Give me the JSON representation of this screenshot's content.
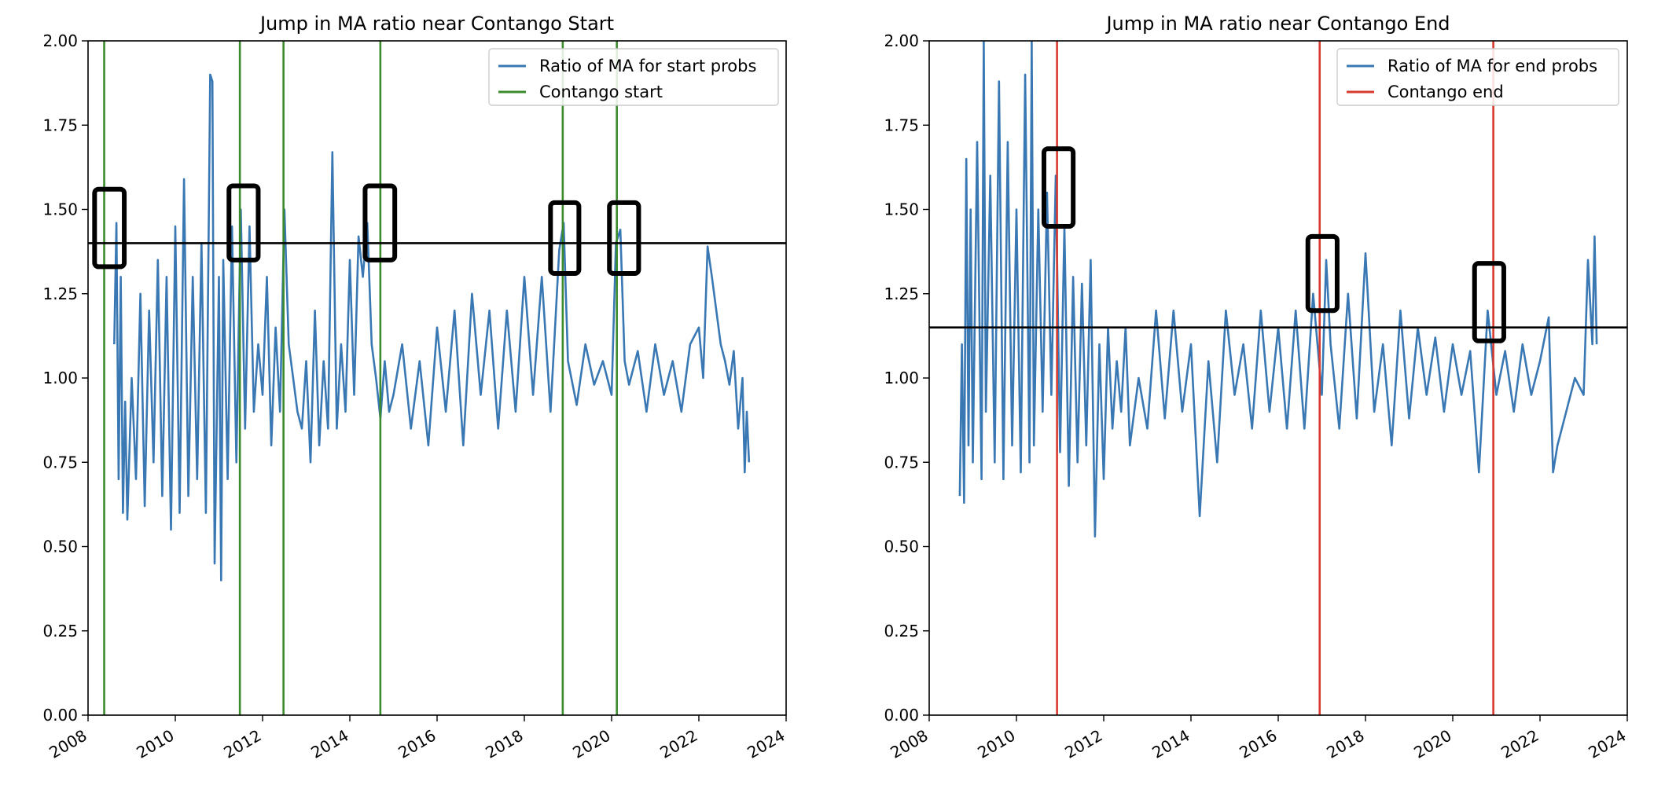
{
  "chart_data": [
    {
      "type": "line",
      "title": "Jump in MA ratio near Contango Start",
      "xlabel": "",
      "ylabel": "",
      "xlim": [
        2008.0,
        2024.0
      ],
      "ylim": [
        0.0,
        2.0
      ],
      "x_ticks": [
        "2008",
        "2010",
        "2012",
        "2014",
        "2016",
        "2018",
        "2020",
        "2022",
        "2024"
      ],
      "y_ticks": [
        "0.00",
        "0.25",
        "0.50",
        "0.75",
        "1.00",
        "1.25",
        "1.50",
        "1.75",
        "2.00"
      ],
      "legend_position": "top-right",
      "grid": false,
      "series": [
        {
          "name": "Ratio of MA for start probs",
          "color": "#3a78b4",
          "x": [
            2008.6,
            2008.65,
            2008.7,
            2008.75,
            2008.8,
            2008.85,
            2008.9,
            2009.0,
            2009.1,
            2009.2,
            2009.3,
            2009.4,
            2009.5,
            2009.6,
            2009.7,
            2009.8,
            2009.9,
            2010.0,
            2010.1,
            2010.2,
            2010.3,
            2010.4,
            2010.5,
            2010.6,
            2010.7,
            2010.8,
            2010.85,
            2010.9,
            2011.0,
            2011.05,
            2011.1,
            2011.2,
            2011.3,
            2011.4,
            2011.5,
            2011.6,
            2011.7,
            2011.8,
            2011.9,
            2012.0,
            2012.1,
            2012.2,
            2012.3,
            2012.4,
            2012.5,
            2012.6,
            2012.7,
            2012.8,
            2012.9,
            2013.0,
            2013.1,
            2013.2,
            2013.3,
            2013.4,
            2013.5,
            2013.6,
            2013.7,
            2013.8,
            2013.9,
            2014.0,
            2014.1,
            2014.2,
            2014.3,
            2014.4,
            2014.5,
            2014.6,
            2014.7,
            2014.8,
            2014.9,
            2015.0,
            2015.2,
            2015.4,
            2015.6,
            2015.8,
            2016.0,
            2016.2,
            2016.4,
            2016.6,
            2016.8,
            2017.0,
            2017.2,
            2017.4,
            2017.6,
            2017.8,
            2018.0,
            2018.2,
            2018.4,
            2018.6,
            2018.8,
            2018.9,
            2019.0,
            2019.2,
            2019.4,
            2019.6,
            2019.8,
            2020.0,
            2020.1,
            2020.2,
            2020.3,
            2020.4,
            2020.6,
            2020.8,
            2021.0,
            2021.2,
            2021.4,
            2021.6,
            2021.8,
            2022.0,
            2022.1,
            2022.2,
            2022.3,
            2022.4,
            2022.5,
            2022.6,
            2022.7,
            2022.8,
            2022.9,
            2023.0,
            2023.05,
            2023.1,
            2023.15
          ],
          "values": [
            1.1,
            1.46,
            0.7,
            1.3,
            0.6,
            0.93,
            0.58,
            1.0,
            0.7,
            1.25,
            0.62,
            1.2,
            0.75,
            1.35,
            0.65,
            1.3,
            0.55,
            1.45,
            0.6,
            1.59,
            0.65,
            1.3,
            0.7,
            1.4,
            0.6,
            1.9,
            1.88,
            0.45,
            1.3,
            0.4,
            1.35,
            0.7,
            1.45,
            0.75,
            1.5,
            0.85,
            1.45,
            0.9,
            1.1,
            0.95,
            1.3,
            0.8,
            1.15,
            0.9,
            1.5,
            1.1,
            1.0,
            0.9,
            0.85,
            1.05,
            0.75,
            1.2,
            0.8,
            1.05,
            0.85,
            1.67,
            0.85,
            1.1,
            0.9,
            1.35,
            0.95,
            1.42,
            1.3,
            1.46,
            1.1,
            1.0,
            0.88,
            1.05,
            0.9,
            0.95,
            1.1,
            0.85,
            1.05,
            0.8,
            1.15,
            0.9,
            1.2,
            0.8,
            1.25,
            0.95,
            1.2,
            0.85,
            1.2,
            0.9,
            1.3,
            0.95,
            1.3,
            0.9,
            1.38,
            1.46,
            1.05,
            0.92,
            1.1,
            0.98,
            1.05,
            0.95,
            1.4,
            1.44,
            1.05,
            0.98,
            1.08,
            0.9,
            1.1,
            0.95,
            1.05,
            0.9,
            1.1,
            1.15,
            1.0,
            1.39,
            1.3,
            1.2,
            1.1,
            1.05,
            0.98,
            1.08,
            0.85,
            1.0,
            0.72,
            0.9,
            0.75
          ]
        },
        {
          "name": "Contango start",
          "color": "#3b8b2c",
          "vlines": [
            2008.37,
            2011.48,
            2012.48,
            2014.7,
            2018.88,
            2020.12
          ]
        }
      ],
      "threshold_line": 1.4,
      "highlight_boxes": [
        {
          "x": [
            2008.15,
            2008.83
          ],
          "y": [
            1.33,
            1.56
          ]
        },
        {
          "x": [
            2011.23,
            2011.9
          ],
          "y": [
            1.35,
            1.57
          ]
        },
        {
          "x": [
            2014.35,
            2015.03
          ],
          "y": [
            1.35,
            1.57
          ]
        },
        {
          "x": [
            2018.6,
            2019.25
          ],
          "y": [
            1.31,
            1.52
          ]
        },
        {
          "x": [
            2019.95,
            2020.62
          ],
          "y": [
            1.31,
            1.52
          ]
        }
      ]
    },
    {
      "type": "line",
      "title": "Jump in MA ratio near Contango End",
      "xlabel": "",
      "ylabel": "",
      "xlim": [
        2008.0,
        2024.0
      ],
      "ylim": [
        0.0,
        2.0
      ],
      "x_ticks": [
        "2008",
        "2010",
        "2012",
        "2014",
        "2016",
        "2018",
        "2020",
        "2022",
        "2024"
      ],
      "y_ticks": [
        "0.00",
        "0.25",
        "0.50",
        "0.75",
        "1.00",
        "1.25",
        "1.50",
        "1.75",
        "2.00"
      ],
      "legend_position": "top-right",
      "grid": false,
      "series": [
        {
          "name": "Ratio of MA for end probs",
          "color": "#3a78b4",
          "x": [
            2008.7,
            2008.75,
            2008.8,
            2008.85,
            2008.9,
            2008.95,
            2009.0,
            2009.1,
            2009.2,
            2009.25,
            2009.3,
            2009.4,
            2009.5,
            2009.6,
            2009.7,
            2009.8,
            2009.9,
            2010.0,
            2010.1,
            2010.2,
            2010.3,
            2010.35,
            2010.4,
            2010.5,
            2010.6,
            2010.7,
            2010.8,
            2010.9,
            2011.0,
            2011.1,
            2011.2,
            2011.3,
            2011.4,
            2011.5,
            2011.6,
            2011.7,
            2011.8,
            2011.9,
            2012.0,
            2012.1,
            2012.2,
            2012.3,
            2012.4,
            2012.5,
            2012.6,
            2012.8,
            2013.0,
            2013.2,
            2013.4,
            2013.6,
            2013.8,
            2014.0,
            2014.2,
            2014.4,
            2014.6,
            2014.8,
            2015.0,
            2015.2,
            2015.4,
            2015.6,
            2015.8,
            2016.0,
            2016.2,
            2016.4,
            2016.6,
            2016.8,
            2017.0,
            2017.1,
            2017.2,
            2017.4,
            2017.6,
            2017.8,
            2018.0,
            2018.2,
            2018.4,
            2018.6,
            2018.8,
            2019.0,
            2019.2,
            2019.4,
            2019.6,
            2019.8,
            2020.0,
            2020.2,
            2020.4,
            2020.6,
            2020.8,
            2021.0,
            2021.2,
            2021.4,
            2021.6,
            2021.8,
            2022.0,
            2022.2,
            2022.3,
            2022.4,
            2022.6,
            2022.8,
            2023.0,
            2023.1,
            2023.2,
            2023.25,
            2023.3
          ],
          "values": [
            0.65,
            1.1,
            0.63,
            1.65,
            0.8,
            1.5,
            0.75,
            1.7,
            0.7,
            2.0,
            0.9,
            1.6,
            0.75,
            1.88,
            0.7,
            1.7,
            0.8,
            1.5,
            0.72,
            1.9,
            0.75,
            2.0,
            0.8,
            1.5,
            0.9,
            1.55,
            0.95,
            1.6,
            0.78,
            1.45,
            0.68,
            1.3,
            0.75,
            1.28,
            0.8,
            1.35,
            0.53,
            1.1,
            0.7,
            1.15,
            0.85,
            1.05,
            0.9,
            1.15,
            0.8,
            1.0,
            0.85,
            1.2,
            0.88,
            1.2,
            0.9,
            1.1,
            0.59,
            1.05,
            0.75,
            1.2,
            0.95,
            1.1,
            0.85,
            1.2,
            0.9,
            1.15,
            0.85,
            1.2,
            0.85,
            1.25,
            0.95,
            1.35,
            1.1,
            0.85,
            1.25,
            0.88,
            1.37,
            0.9,
            1.1,
            0.8,
            1.2,
            0.88,
            1.15,
            0.95,
            1.12,
            0.9,
            1.1,
            0.95,
            1.08,
            0.72,
            1.2,
            0.95,
            1.08,
            0.9,
            1.1,
            0.95,
            1.05,
            1.18,
            0.72,
            0.8,
            0.9,
            1.0,
            0.95,
            1.35,
            1.1,
            1.42,
            1.1
          ]
        },
        {
          "name": "Contango end",
          "color": "#d83a2e",
          "vlines": [
            2010.93,
            2016.95,
            2020.93
          ]
        }
      ],
      "threshold_line": 1.15,
      "highlight_boxes": [
        {
          "x": [
            2010.63,
            2011.3
          ],
          "y": [
            1.45,
            1.68
          ]
        },
        {
          "x": [
            2016.68,
            2017.35
          ],
          "y": [
            1.2,
            1.42
          ]
        },
        {
          "x": [
            2020.5,
            2021.17
          ],
          "y": [
            1.11,
            1.34
          ]
        }
      ]
    }
  ]
}
